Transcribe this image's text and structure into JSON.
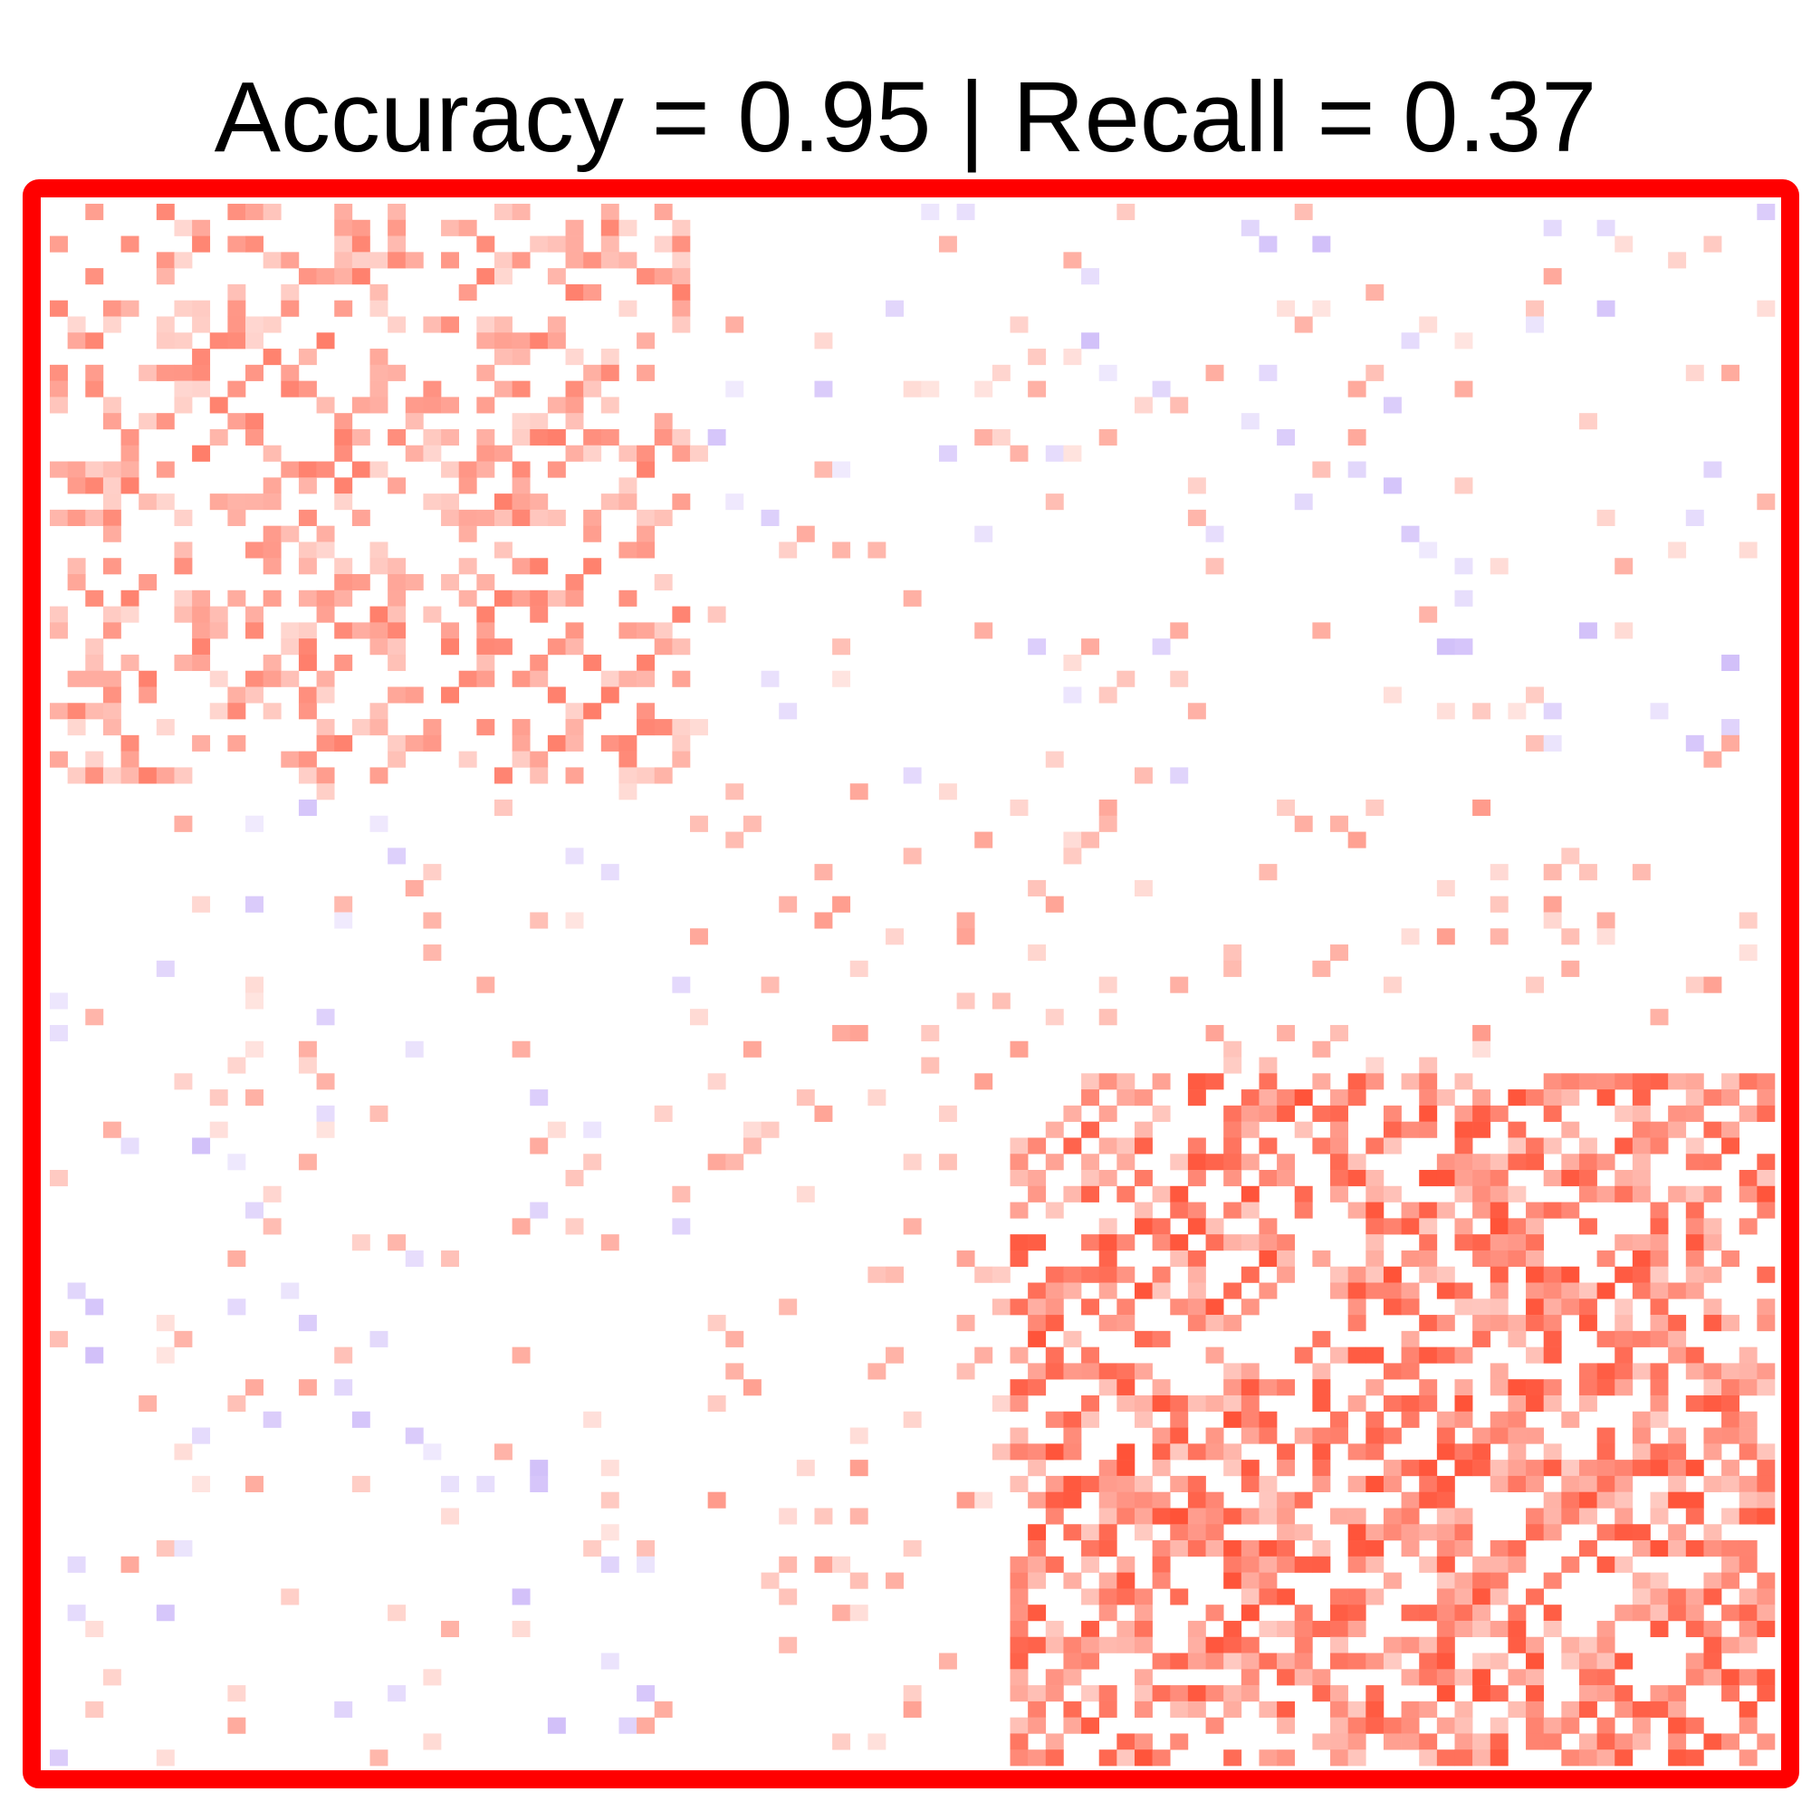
{
  "chart_data": {
    "type": "heatmap",
    "title": "Accuracy = 0.95 | Recall = 0.37",
    "frame_color": "#ff0000",
    "n": 97,
    "matrix_shape": [
      97,
      97
    ],
    "color_scale": {
      "positive": "#ff2200",
      "negative": "#8a5cf0",
      "zero": "#ffffff"
    },
    "blocks": [
      {
        "name": "upper-left-cluster",
        "rows": [
          1,
          36
        ],
        "cols": [
          1,
          36
        ],
        "sign": "positive",
        "density": 0.35,
        "intensity": 0.45
      },
      {
        "name": "lower-right-cluster",
        "rows": [
          55,
          97
        ],
        "cols": [
          55,
          97
        ],
        "sign": "positive",
        "density": 0.55,
        "intensity": 0.6
      },
      {
        "name": "upper-right-sparse",
        "rows": [
          1,
          36
        ],
        "cols": [
          37,
          97
        ],
        "sign": "mixed",
        "density": 0.06,
        "intensity": 0.3
      },
      {
        "name": "lower-left-sparse",
        "rows": [
          55,
          97
        ],
        "cols": [
          1,
          36
        ],
        "sign": "mixed",
        "density": 0.06,
        "intensity": 0.3
      },
      {
        "name": "middle-band",
        "rows": [
          37,
          54
        ],
        "cols": [
          1,
          97
        ],
        "sign": "positive",
        "density": 0.07,
        "intensity": 0.35
      }
    ]
  }
}
